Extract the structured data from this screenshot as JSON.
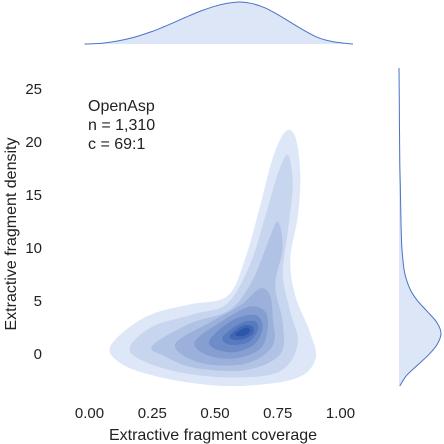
{
  "chart_data": {
    "type": "kde-jointplot",
    "xlabel": "Extractive fragment coverage",
    "ylabel": "Extractive fragment density",
    "xlim": [
      -0.05,
      1.05
    ],
    "ylim": [
      -3,
      27
    ],
    "xticks": [
      "0.00",
      "0.25",
      "0.50",
      "0.75",
      "1.00"
    ],
    "xtick_values": [
      0.0,
      0.25,
      0.5,
      0.75,
      1.0
    ],
    "yticks": [
      "0",
      "5",
      "10",
      "15",
      "20",
      "25"
    ],
    "ytick_values": [
      0,
      5,
      10,
      15,
      20,
      25
    ],
    "annotation": [
      "OpenAsp",
      "n = 1,310",
      "c = 69:1"
    ],
    "color": "#4a72c8",
    "density_levels": [
      {
        "level": 1,
        "outline": [
          [
            0.08,
            0.5
          ],
          [
            0.14,
            2.2
          ],
          [
            0.25,
            3.8
          ],
          [
            0.4,
            4.7
          ],
          [
            0.55,
            5.5
          ],
          [
            0.62,
            9.0
          ],
          [
            0.68,
            14.0
          ],
          [
            0.73,
            18.5
          ],
          [
            0.78,
            21.0
          ],
          [
            0.82,
            20.5
          ],
          [
            0.84,
            17.0
          ],
          [
            0.83,
            13.0
          ],
          [
            0.8,
            9.0
          ],
          [
            0.82,
            5.5
          ],
          [
            0.88,
            2.0
          ],
          [
            0.9,
            -0.5
          ],
          [
            0.82,
            -2.3
          ],
          [
            0.6,
            -3.0
          ],
          [
            0.4,
            -2.7
          ],
          [
            0.22,
            -1.8
          ],
          [
            0.12,
            -0.8
          ]
        ]
      },
      {
        "level": 2,
        "outline": [
          [
            0.16,
            0.6
          ],
          [
            0.25,
            2.6
          ],
          [
            0.42,
            3.8
          ],
          [
            0.55,
            4.8
          ],
          [
            0.64,
            8.5
          ],
          [
            0.7,
            13.0
          ],
          [
            0.75,
            17.0
          ],
          [
            0.79,
            18.8
          ],
          [
            0.81,
            16.0
          ],
          [
            0.79,
            11.5
          ],
          [
            0.77,
            7.5
          ],
          [
            0.8,
            4.0
          ],
          [
            0.83,
            1.0
          ],
          [
            0.76,
            -1.6
          ],
          [
            0.58,
            -2.2
          ],
          [
            0.38,
            -1.8
          ],
          [
            0.22,
            -0.7
          ]
        ]
      },
      {
        "level": 3,
        "outline": [
          [
            0.25,
            0.8
          ],
          [
            0.4,
            2.9
          ],
          [
            0.56,
            4.2
          ],
          [
            0.65,
            7.0
          ],
          [
            0.71,
            10.5
          ],
          [
            0.75,
            12.5
          ],
          [
            0.77,
            10.0
          ],
          [
            0.74,
            6.5
          ],
          [
            0.77,
            3.0
          ],
          [
            0.76,
            0.0
          ],
          [
            0.62,
            -1.5
          ],
          [
            0.42,
            -1.3
          ],
          [
            0.3,
            -0.2
          ]
        ]
      },
      {
        "level": 4,
        "outline": [
          [
            0.34,
            0.9
          ],
          [
            0.48,
            3.0
          ],
          [
            0.6,
            4.6
          ],
          [
            0.68,
            6.2
          ],
          [
            0.72,
            5.5
          ],
          [
            0.73,
            3.5
          ],
          [
            0.73,
            0.8
          ],
          [
            0.62,
            -0.9
          ],
          [
            0.44,
            -0.8
          ]
        ]
      },
      {
        "level": 5,
        "outline": [
          [
            0.42,
            1.2
          ],
          [
            0.54,
            3.3
          ],
          [
            0.64,
            4.5
          ],
          [
            0.7,
            4.0
          ],
          [
            0.71,
            2.4
          ],
          [
            0.68,
            0.5
          ],
          [
            0.58,
            -0.4
          ],
          [
            0.47,
            -0.1
          ]
        ]
      },
      {
        "level": 6,
        "outline": [
          [
            0.48,
            1.4
          ],
          [
            0.57,
            3.2
          ],
          [
            0.66,
            3.7
          ],
          [
            0.69,
            2.6
          ],
          [
            0.66,
            1.0
          ],
          [
            0.58,
            0.2
          ],
          [
            0.5,
            0.5
          ]
        ]
      },
      {
        "level": 7,
        "outline": [
          [
            0.53,
            1.6
          ],
          [
            0.6,
            2.9
          ],
          [
            0.66,
            3.1
          ],
          [
            0.67,
            2.2
          ],
          [
            0.63,
            1.1
          ],
          [
            0.56,
            0.9
          ]
        ]
      },
      {
        "level": 8,
        "outline": [
          [
            0.56,
            1.8
          ],
          [
            0.61,
            2.7
          ],
          [
            0.65,
            2.6
          ],
          [
            0.65,
            1.9
          ],
          [
            0.61,
            1.4
          ],
          [
            0.57,
            1.4
          ]
        ]
      },
      {
        "level": 9,
        "outline": [
          [
            0.58,
            1.9
          ],
          [
            0.62,
            2.5
          ],
          [
            0.64,
            2.3
          ],
          [
            0.63,
            1.9
          ],
          [
            0.6,
            1.7
          ]
        ]
      }
    ],
    "top_marginal_x": [
      -0.02,
      0.05,
      0.1,
      0.15,
      0.2,
      0.25,
      0.3,
      0.35,
      0.4,
      0.45,
      0.5,
      0.55,
      0.6,
      0.65,
      0.7,
      0.75,
      0.8,
      0.85,
      0.9,
      0.95,
      1.0,
      1.05
    ],
    "top_marginal_density": [
      0.0,
      0.02,
      0.06,
      0.12,
      0.2,
      0.3,
      0.42,
      0.55,
      0.68,
      0.8,
      0.9,
      0.97,
      1.0,
      0.96,
      0.86,
      0.7,
      0.52,
      0.34,
      0.18,
      0.08,
      0.03,
      0.0
    ],
    "right_marginal_y": [
      -3,
      -2,
      -1,
      0,
      1,
      2,
      3,
      4,
      5,
      6,
      7,
      8,
      10,
      12,
      14,
      16,
      18,
      20,
      22,
      25,
      27
    ],
    "right_marginal_density": [
      0.02,
      0.18,
      0.45,
      0.72,
      0.92,
      1.0,
      0.9,
      0.68,
      0.45,
      0.28,
      0.18,
      0.12,
      0.07,
      0.05,
      0.04,
      0.03,
      0.02,
      0.015,
      0.01,
      0.005,
      0.0
    ]
  }
}
